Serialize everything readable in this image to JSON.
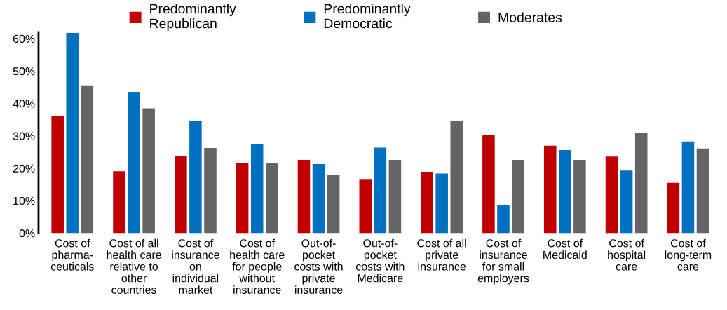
{
  "chart_data": {
    "type": "bar",
    "categories": [
      "Cost of\npharma-\nceuticals",
      "Cost of all\nhealth care\nrelative to\nother\ncountries",
      "Cost of\ninsurance\non\nindividual\nmarket",
      "Cost of\nhealth care\nfor people\nwithout\ninsurance",
      "Out-of-\npocket\ncosts with\nprivate\ninsurance",
      "Out-of-\npocket\ncosts with\nMedicare",
      "Cost of all\nprivate\ninsurance",
      "Cost of\ninsurance\nfor small\nemployers",
      "Cost of\nMedicaid",
      "Cost of\nhospital\ncare",
      "Cost of\nlong-term\ncare"
    ],
    "series": [
      {
        "name": "Predominantly\nRepublican",
        "color": "#c00000",
        "values": [
          36.2,
          19.1,
          23.8,
          21.5,
          22.6,
          16.7,
          18.9,
          30.4,
          27.0,
          23.6,
          15.5
        ]
      },
      {
        "name": "Predominantly\nDemocratic",
        "color": "#0070c0",
        "values": [
          61.8,
          43.6,
          34.6,
          27.5,
          21.3,
          26.4,
          18.4,
          8.5,
          25.6,
          19.3,
          28.3
        ]
      },
      {
        "name": "Moderates",
        "color": "#646466",
        "values": [
          45.6,
          38.5,
          26.3,
          21.5,
          18.0,
          22.6,
          34.7,
          22.6,
          22.6,
          31.0,
          26.1
        ]
      }
    ],
    "ylim": [
      0,
      62
    ],
    "yticks": [
      {
        "value": 0,
        "label": "0%"
      },
      {
        "value": 10,
        "label": "10%"
      },
      {
        "value": 20,
        "label": "20%"
      },
      {
        "value": 30,
        "label": "30%"
      },
      {
        "value": 40,
        "label": "40%"
      },
      {
        "value": 50,
        "label": "50%"
      },
      {
        "value": 60,
        "label": "60%"
      }
    ],
    "grid": false,
    "legend": "top"
  }
}
